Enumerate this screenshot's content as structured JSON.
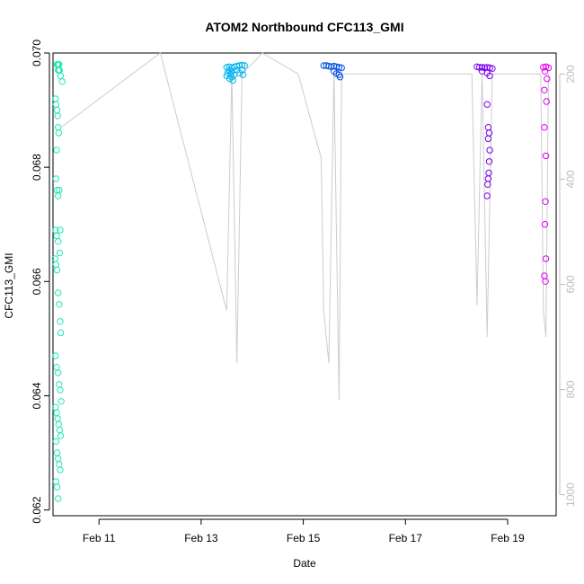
{
  "chart_data": {
    "type": "scatter",
    "title": "ATOM2 Northbound CFC113_GMI",
    "xlabel": "Date",
    "ylabel": "CFC113_GMI",
    "x_units": "days since 2017-02-10 00:00",
    "xlim": [
      0.1,
      9.95
    ],
    "ylim": [
      0.0619,
      0.07
    ],
    "yticks": [
      "0.062",
      "0.064",
      "0.066",
      "0.068",
      "0.070"
    ],
    "xticks": [
      {
        "value": 1,
        "label": "Feb 11"
      },
      {
        "value": 3,
        "label": "Feb 13"
      },
      {
        "value": 5,
        "label": "Feb 15"
      },
      {
        "value": 7,
        "label": "Feb 17"
      },
      {
        "value": 9,
        "label": "Feb 19"
      }
    ],
    "right_axis": {
      "ylim": [
        1040,
        160
      ],
      "ticks": [
        "200",
        "400",
        "600",
        "800",
        "1000"
      ],
      "color": "#bdbdbd"
    },
    "grid": false,
    "series": [
      {
        "color": "#1de9b6",
        "x": [
          0.18,
          0.19,
          0.2,
          0.2,
          0.21,
          0.22,
          0.23,
          0.25,
          0.28,
          0.15,
          0.16,
          0.18,
          0.19,
          0.2,
          0.21,
          0.17,
          0.16,
          0.18,
          0.2,
          0.22,
          0.24,
          0.15,
          0.17,
          0.2,
          0.23,
          0.14,
          0.16,
          0.18,
          0.2,
          0.22,
          0.24,
          0.25,
          0.15,
          0.17,
          0.2,
          0.22,
          0.24,
          0.26,
          0.15,
          0.17,
          0.19,
          0.21,
          0.23,
          0.25,
          0.16,
          0.18,
          0.2,
          0.22,
          0.24,
          0.16,
          0.18,
          0.2
        ],
        "y": [
          0.0698,
          0.0698,
          0.0697,
          0.0698,
          0.0697,
          0.0698,
          0.0697,
          0.0696,
          0.0695,
          0.0692,
          0.0691,
          0.069,
          0.0689,
          0.0687,
          0.0686,
          0.0683,
          0.0678,
          0.0676,
          0.0675,
          0.0676,
          0.0669,
          0.0669,
          0.0668,
          0.0667,
          0.0665,
          0.0664,
          0.0663,
          0.0662,
          0.0658,
          0.0656,
          0.0653,
          0.0651,
          0.0647,
          0.0645,
          0.0644,
          0.0642,
          0.0641,
          0.0639,
          0.0638,
          0.0637,
          0.0636,
          0.0635,
          0.0634,
          0.0633,
          0.0632,
          0.063,
          0.0629,
          0.0628,
          0.0627,
          0.0625,
          0.0624,
          0.0622
        ]
      },
      {
        "color": "#00b0f0",
        "x": [
          3.5,
          3.55,
          3.6,
          3.65,
          3.7,
          3.75,
          3.8,
          3.85,
          3.55,
          3.6,
          3.7,
          3.8,
          3.52,
          3.58,
          3.65,
          3.75,
          3.82,
          3.5,
          3.6,
          3.56,
          3.62
        ],
        "y": [
          0.06975,
          0.06976,
          0.06974,
          0.06976,
          0.06977,
          0.06978,
          0.06979,
          0.06978,
          0.0697,
          0.06968,
          0.0697,
          0.0697,
          0.06965,
          0.06963,
          0.06962,
          0.06965,
          0.06962,
          0.0696,
          0.06958,
          0.06955,
          0.06952
        ]
      },
      {
        "color": "#0050e0",
        "x": [
          5.4,
          5.45,
          5.5,
          5.55,
          5.6,
          5.65,
          5.7,
          5.75,
          5.6,
          5.65,
          5.7,
          5.72
        ],
        "y": [
          0.06978,
          0.06978,
          0.06977,
          0.06976,
          0.06977,
          0.06976,
          0.06975,
          0.06974,
          0.06968,
          0.06964,
          0.06962,
          0.06958
        ]
      },
      {
        "color": "#7a00f0",
        "x": [
          8.4,
          8.45,
          8.5,
          8.55,
          8.6,
          8.65,
          8.7,
          8.5,
          8.6,
          8.65,
          8.6,
          8.62,
          8.64,
          8.62,
          8.65,
          8.64,
          8.63,
          8.62,
          8.61,
          8.6
        ],
        "y": [
          0.06976,
          0.06975,
          0.06975,
          0.06974,
          0.06975,
          0.06974,
          0.06973,
          0.06968,
          0.06965,
          0.0696,
          0.0691,
          0.0687,
          0.0686,
          0.0685,
          0.0683,
          0.0681,
          0.0679,
          0.0678,
          0.0677,
          0.0675
        ]
      },
      {
        "color": "#e000f0",
        "x": [
          9.7,
          9.75,
          9.8,
          9.73,
          9.77,
          9.72,
          9.76,
          9.72,
          9.75,
          9.74,
          9.73,
          9.75,
          9.72,
          9.74
        ],
        "y": [
          0.06975,
          0.06976,
          0.06974,
          0.06968,
          0.06955,
          0.06935,
          0.06915,
          0.0687,
          0.0682,
          0.0674,
          0.067,
          0.0664,
          0.0661,
          0.066
        ]
      }
    ],
    "altitude_line": {
      "color": "#cccccc",
      "x": [
        0.28,
        2.2,
        3.5,
        3.6,
        3.7,
        3.8,
        4.2,
        4.9,
        5.35,
        5.4,
        5.5,
        5.6,
        5.7,
        5.75,
        5.8,
        8.3,
        8.4,
        8.5,
        8.6,
        8.7,
        9.65,
        9.7,
        9.75,
        9.8
      ],
      "y": [
        300,
        150,
        650,
        200,
        750,
        200,
        150,
        200,
        360,
        650,
        750,
        200,
        820,
        200,
        200,
        200,
        640,
        200,
        700,
        200,
        200,
        650,
        700,
        200
      ]
    }
  }
}
